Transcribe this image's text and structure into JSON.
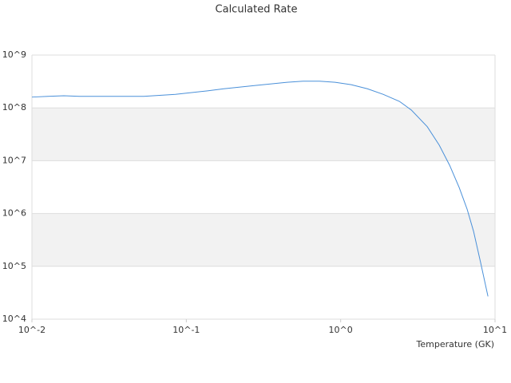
{
  "chart_data": {
    "type": "line",
    "title": "Calculated Rate",
    "x_label": "Temperature (GK)",
    "log_x": true,
    "log_y": true,
    "grid": true,
    "band_color": "#f2f2f2",
    "xlim": [
      0.01,
      10
    ],
    "xticks": [
      {
        "value": 0.01,
        "label": "10^-2"
      },
      {
        "value": 0.1,
        "label": "10^-1"
      },
      {
        "value": 1,
        "label": "10^0"
      },
      {
        "value": 10,
        "label": "10^1"
      }
    ],
    "ylim": [
      10000,
      1000000000
    ],
    "yticks": [
      {
        "value": 10000,
        "label": "10^4"
      },
      {
        "value": 100000,
        "label": "10^5"
      },
      {
        "value": 1000000,
        "label": "10^6"
      },
      {
        "value": 10000000,
        "label": "10^7"
      },
      {
        "value": 100000000,
        "label": "10^8"
      },
      {
        "value": 1000000000,
        "label": "10^9"
      }
    ],
    "x": [
      0.01,
      0.0127,
      0.0161,
      0.0204,
      0.0329,
      0.053,
      0.085,
      0.137,
      0.175,
      0.28,
      0.45,
      0.57,
      0.73,
      0.92,
      1.17,
      1.49,
      1.89,
      2.4,
      2.87,
      3.64,
      4.35,
      5.08,
      5.86,
      6.6,
      7.26,
      8.08,
      9.0
    ],
    "series": [
      {
        "color": "#4a90d9",
        "values": [
          160000000,
          165000000,
          170000000,
          165000000,
          165000000,
          165000000,
          180000000,
          210000000,
          230000000,
          265000000,
          305000000,
          320000000,
          320000000,
          305000000,
          275000000,
          230000000,
          180000000,
          133000000,
          91000000,
          44000000,
          19700000,
          8200000,
          3100000,
          1200000,
          460000,
          115000,
          27000
        ]
      }
    ]
  }
}
